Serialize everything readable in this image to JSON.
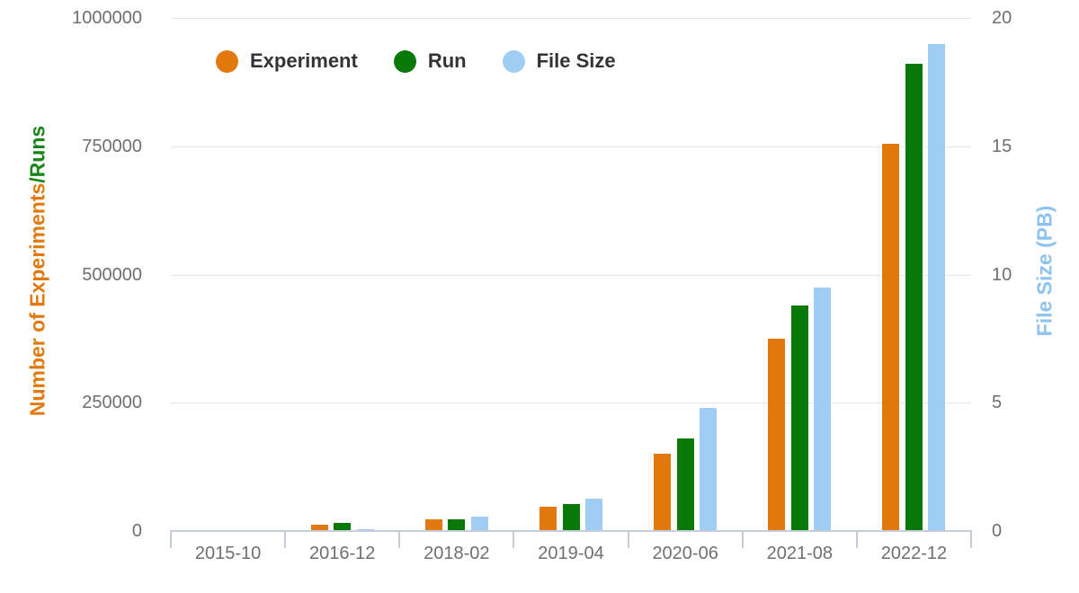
{
  "chart_data": {
    "type": "bar",
    "title": "",
    "categories": [
      "2015-10",
      "2016-12",
      "2018-02",
      "2019-04",
      "2020-06",
      "2021-08",
      "2022-12"
    ],
    "series": [
      {
        "name": "Experiment",
        "axis": "left",
        "color": "#e2790e",
        "values": [
          0,
          12000,
          23000,
          48000,
          150000,
          375000,
          755000
        ]
      },
      {
        "name": "Run",
        "axis": "left",
        "color": "#097a09",
        "values": [
          0,
          15000,
          23000,
          52000,
          180000,
          440000,
          910000
        ]
      },
      {
        "name": "File Size",
        "axis": "right",
        "color": "#9fcdf3",
        "values": [
          0,
          0.08,
          0.55,
          1.25,
          4.8,
          9.5,
          19
        ]
      }
    ],
    "left_axis": {
      "label_part1": "Number of Experiments",
      "label_part2": "/Runs",
      "tick_labels": [
        "1000000",
        "750000",
        "500000",
        "250000",
        "0"
      ],
      "min": 0,
      "max": 1000000
    },
    "right_axis": {
      "label": "File Size (PB)",
      "tick_labels": [
        "20",
        "15",
        "10",
        "5",
        "0"
      ],
      "min": 0,
      "max": 20
    },
    "legend": {
      "position": "top",
      "items": [
        "Experiment",
        "Run",
        "File Size"
      ]
    },
    "grid": true
  },
  "colors": {
    "experiment_bar": "#e2790e",
    "run_bar": "#097a09",
    "file_size_bar": "#9fcdf3",
    "left_title_orange": "#e2790e",
    "left_title_green": "#178517",
    "right_title_blue": "#8fc3ef",
    "tick_label": "#6f6f6f",
    "legend_text": "#333333",
    "gridline": "#e7e7e7",
    "axis_line": "#c6ccd9",
    "background": "#ffffff"
  }
}
